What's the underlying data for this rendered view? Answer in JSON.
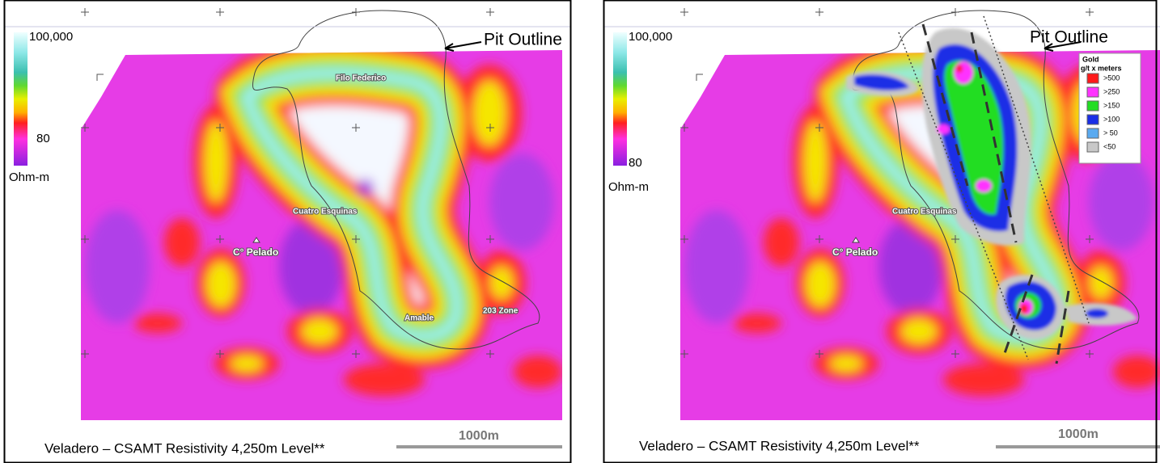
{
  "panels": [
    {
      "legend": {
        "max": "100,000",
        "min": "80",
        "unit": "Ohm-m"
      },
      "callout": "Pit Outline",
      "places": [
        "Filo Federico",
        "Cuatro Esquinas",
        "C° Pelado",
        "Amable",
        "203 Zone"
      ],
      "caption": "Veladero – CSAMT Resistivity 4,250m Level**",
      "scale_bar": "1000m"
    },
    {
      "legend": {
        "max": "100,000",
        "min": "80",
        "unit": "Ohm-m"
      },
      "callout": "Pit Outline",
      "places": [
        "Cuatro Esquinas",
        "C° Pelado"
      ],
      "caption": "Veladero – CSAMT Resistivity 4,250m Level**",
      "scale_bar": "1000m",
      "gold_legend": {
        "title": "Gold",
        "subtitle": "g/t x meters",
        "classes": [
          {
            "label": ">500",
            "color": "#ff1a1a"
          },
          {
            "label": ">250",
            "color": "#ff33ff"
          },
          {
            "label": ">150",
            "color": "#22dd22"
          },
          {
            "label": ">100",
            "color": "#1a2ee6"
          },
          {
            "label": "> 50",
            "color": "#5aaaf0"
          },
          {
            "label": "<50",
            "color": "#c8c8c8"
          }
        ]
      }
    }
  ]
}
